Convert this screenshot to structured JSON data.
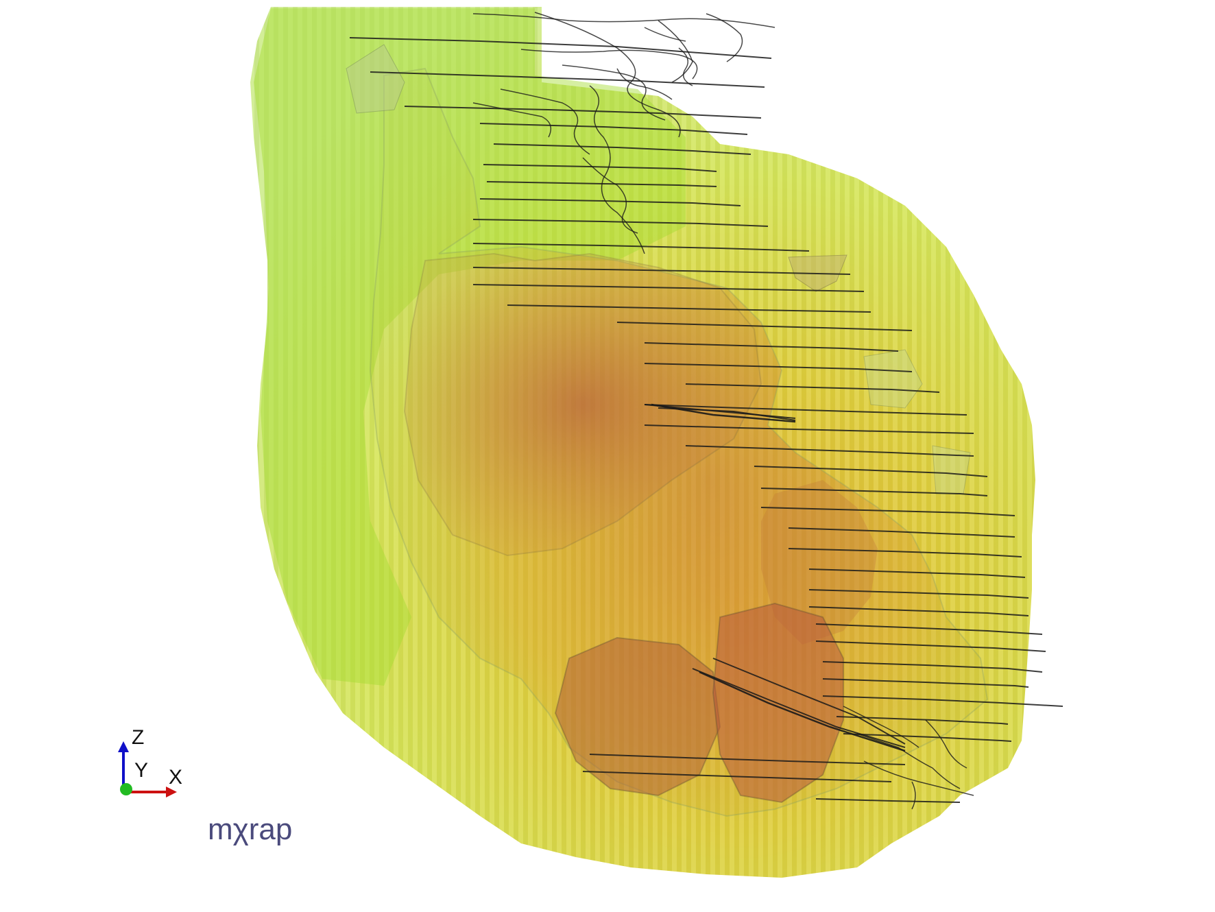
{
  "viewer": {
    "background_color": "#ffffff",
    "logo_text": "mχrap",
    "axes": {
      "z_label": "Z",
      "y_label": "Y",
      "x_label": "X",
      "z_color": "#1010c8",
      "y_color": "#22bb22",
      "x_color": "#cc1111"
    }
  },
  "scene": {
    "volume_colors": {
      "outer_green": "#a8dc2a",
      "mid_yellow": "#d6d21e",
      "inner_orange": "#e49a28",
      "core_red": "#b8603a",
      "wireframe": "#1a1a1a"
    }
  }
}
